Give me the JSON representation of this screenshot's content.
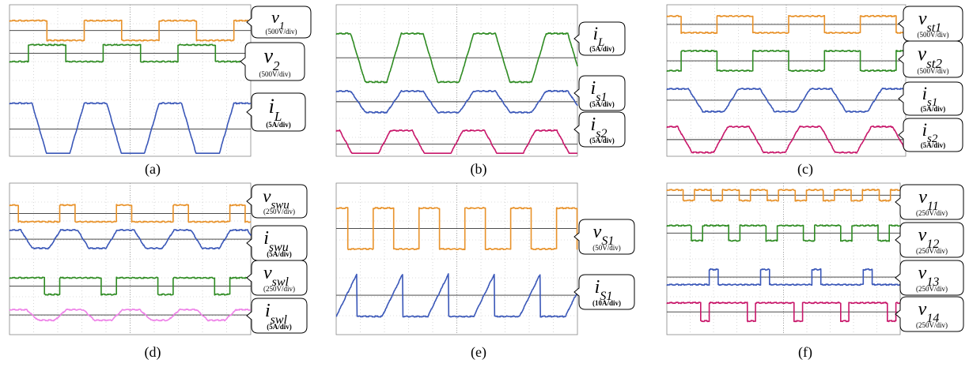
{
  "chart_data": [
    {
      "type": "line",
      "caption": "(a)",
      "annotations": [
        {
          "symbol": "v",
          "sub": "1",
          "scale": "(500V/div)"
        },
        {
          "symbol": "v",
          "sub": "2",
          "scale": "(500V/div)"
        },
        {
          "symbol": "i",
          "sub": "L",
          "scale": "(5A/div)"
        }
      ],
      "series": [
        {
          "color": "#E8922A",
          "kind": "square",
          "base": 0.17,
          "amp": 0.13,
          "period": 0.31,
          "duty": 0.5,
          "phase": 0.0,
          "dir": -1
        },
        {
          "color": "#2E8B22",
          "kind": "square",
          "base": 0.32,
          "amp": 0.11,
          "period": 0.31,
          "duty": 0.5,
          "phase": 0.25,
          "dir": 1
        },
        {
          "color": "#3A57B8",
          "kind": "trap",
          "base": 0.82,
          "amp": 0.34,
          "period": 0.31,
          "phase": 0.0,
          "dir": 1
        }
      ]
    },
    {
      "type": "line",
      "caption": "(b)",
      "annotations": [
        {
          "symbol": "i",
          "sub": "L",
          "scale": "(5A/div)"
        },
        {
          "symbol": "i",
          "sub": "s1",
          "scale": "(5A/div)"
        },
        {
          "symbol": "i",
          "sub": "s2",
          "scale": "(5A/div)"
        }
      ],
      "series": [
        {
          "color": "#2E8B22",
          "kind": "trap",
          "base": 0.35,
          "amp": 0.32,
          "period": 0.3,
          "phase": 0.1,
          "dir": 1
        },
        {
          "color": "#3A57B8",
          "kind": "trap",
          "base": 0.64,
          "amp": 0.14,
          "period": 0.3,
          "phase": 0.1,
          "dir": 1
        },
        {
          "color": "#C8176A",
          "kind": "trap",
          "base": 0.92,
          "amp": 0.18,
          "period": 0.3,
          "phase": 0.25,
          "dir": 1
        }
      ]
    },
    {
      "type": "line",
      "caption": "(c)",
      "annotations": [
        {
          "symbol": "v",
          "sub": "st1",
          "scale": "(500V/div)"
        },
        {
          "symbol": "v",
          "sub": "st2",
          "scale": "(500V/div)"
        },
        {
          "symbol": "i",
          "sub": "s1",
          "scale": "(5A/div)"
        },
        {
          "symbol": "i",
          "sub": "s2",
          "scale": "(5A/div)"
        }
      ],
      "series": [
        {
          "color": "#E8922A",
          "kind": "square",
          "base": 0.13,
          "amp": 0.11,
          "period": 0.3,
          "duty": 0.5,
          "phase": 0.3,
          "dir": -1
        },
        {
          "color": "#2E8B22",
          "kind": "square",
          "base": 0.37,
          "amp": 0.13,
          "period": 0.3,
          "duty": 0.5,
          "phase": 0.3,
          "dir": 1
        },
        {
          "color": "#3A57B8",
          "kind": "trap",
          "base": 0.63,
          "amp": 0.15,
          "period": 0.3,
          "phase": 0.0,
          "dir": 1
        },
        {
          "color": "#C8176A",
          "kind": "trap",
          "base": 0.89,
          "amp": 0.17,
          "period": 0.3,
          "phase": 0.15,
          "dir": 1
        }
      ]
    },
    {
      "type": "line",
      "caption": "(d)",
      "annotations": [
        {
          "symbol": "v",
          "sub": "swu",
          "scale": "(250V/div)"
        },
        {
          "symbol": "i",
          "sub": "swu",
          "scale": "(5A/div)"
        },
        {
          "symbol": "v",
          "sub": "swl",
          "scale": "(250V/div)"
        },
        {
          "symbol": "i",
          "sub": "swl",
          "scale": "(5A/div)"
        }
      ],
      "series": [
        {
          "color": "#E8922A",
          "kind": "square",
          "base": 0.2,
          "amp": 0.11,
          "period": 0.235,
          "duty": 0.27,
          "phase": 0.12,
          "dir": -1
        },
        {
          "color": "#3A57B8",
          "kind": "trap",
          "base": 0.37,
          "amp": 0.12,
          "period": 0.235,
          "phase": 0.1,
          "dir": 1
        },
        {
          "color": "#2E8B22",
          "kind": "square",
          "base": 0.68,
          "amp": 0.11,
          "period": 0.235,
          "duty": 0.73,
          "phase": 0.12,
          "dir": -1
        },
        {
          "color": "#EE82E8",
          "kind": "trap",
          "base": 0.87,
          "amp": 0.07,
          "period": 0.235,
          "phase": 0.0,
          "dir": 1
        }
      ]
    },
    {
      "type": "line",
      "caption": "(e)",
      "annotations": [
        {
          "symbol": "v",
          "sub": "S1",
          "scale": "(50V/div)"
        },
        {
          "symbol": "i",
          "sub": "S1",
          "scale": "(10A/div)"
        }
      ],
      "series": [
        {
          "color": "#E8922A",
          "kind": "square",
          "base": 0.3,
          "amp": 0.27,
          "period": 0.19,
          "duty": 0.45,
          "phase": 0.2,
          "dir": -1
        },
        {
          "color": "#3A57B8",
          "kind": "saw",
          "base": 0.74,
          "amp": 0.28,
          "period": 0.19,
          "phase": 0.0,
          "dir": 1
        }
      ]
    },
    {
      "type": "line",
      "caption": "(f)",
      "annotations": [
        {
          "symbol": "v",
          "sub": "11",
          "scale": "(250V/div)"
        },
        {
          "symbol": "v",
          "sub": "12",
          "scale": "(250V/div)"
        },
        {
          "symbol": "v",
          "sub": "13",
          "scale": "(250V/div)"
        },
        {
          "symbol": "v",
          "sub": "14",
          "scale": "(250V/div)"
        }
      ],
      "series": [
        {
          "color": "#E8922A",
          "kind": "square",
          "base": 0.08,
          "amp": 0.07,
          "period": 0.12,
          "duty": 0.6,
          "phase": 0.02,
          "dir": -1
        },
        {
          "color": "#2E8B22",
          "kind": "square",
          "base": 0.33,
          "amp": 0.1,
          "period": 0.16,
          "duty": 0.7,
          "phase": 0.05,
          "dir": -1
        },
        {
          "color": "#3A57B8",
          "kind": "square",
          "base": 0.62,
          "amp": 0.1,
          "period": 0.22,
          "duty": 0.82,
          "phase": 0.0,
          "dir": 1
        },
        {
          "color": "#C8176A",
          "kind": "square",
          "base": 0.85,
          "amp": 0.12,
          "period": 0.2,
          "duty": 0.82,
          "phase": 0.1,
          "dir": -1
        }
      ]
    }
  ]
}
